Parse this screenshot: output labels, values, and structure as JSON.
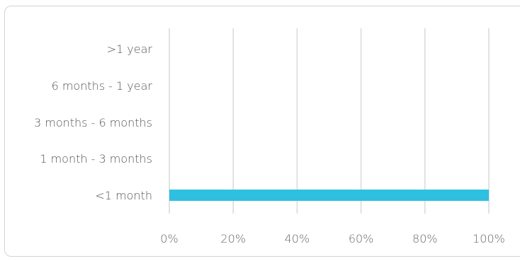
{
  "chart_data": {
    "type": "bar",
    "orientation": "horizontal",
    "categories": [
      ">1 year",
      "6 months - 1 year",
      "3 months - 6 months",
      "1 month - 3 months",
      "<1 month"
    ],
    "values": [
      0,
      0,
      0,
      0,
      100
    ],
    "x_ticks": [
      "0%",
      "20%",
      "40%",
      "60%",
      "80%",
      "100%"
    ],
    "xlim": [
      0,
      100
    ],
    "grid": "vertical",
    "bar_color": "#2ec0e0",
    "grid_color": "#d9d9d9",
    "title": "",
    "xlabel": "",
    "ylabel": ""
  }
}
